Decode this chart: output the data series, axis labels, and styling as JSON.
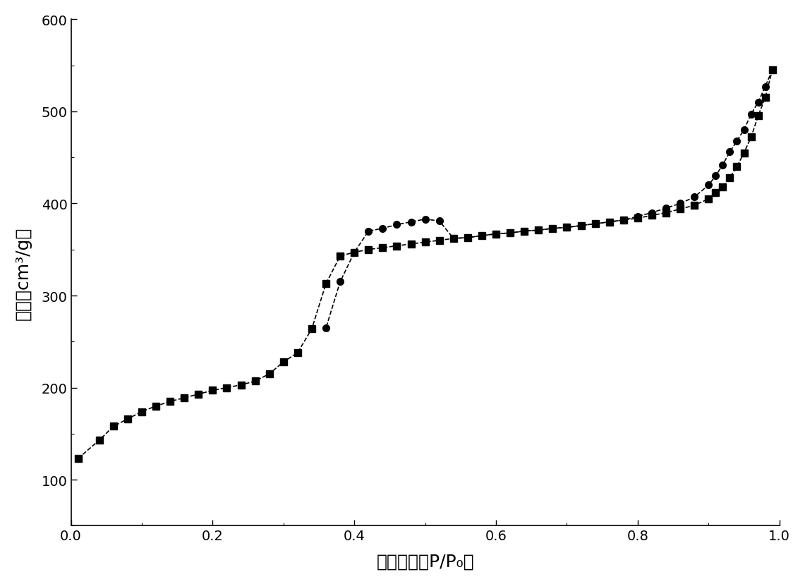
{
  "adsorption_x": [
    0.01,
    0.04,
    0.06,
    0.08,
    0.1,
    0.12,
    0.14,
    0.16,
    0.18,
    0.2,
    0.22,
    0.24,
    0.26,
    0.28,
    0.3,
    0.32,
    0.34,
    0.36,
    0.38,
    0.4,
    0.42,
    0.44,
    0.46,
    0.48,
    0.5,
    0.52,
    0.54,
    0.56,
    0.58,
    0.6,
    0.62,
    0.64,
    0.66,
    0.68,
    0.7,
    0.72,
    0.74,
    0.76,
    0.78,
    0.8,
    0.82,
    0.84,
    0.86,
    0.88,
    0.9,
    0.91,
    0.92,
    0.93,
    0.94,
    0.95,
    0.96,
    0.97,
    0.98,
    0.99
  ],
  "adsorption_y": [
    123,
    143,
    158,
    166,
    174,
    180,
    185,
    189,
    193,
    197,
    200,
    203,
    207,
    215,
    228,
    238,
    264,
    313,
    343,
    347,
    350,
    352,
    354,
    356,
    358,
    360,
    362,
    363,
    365,
    367,
    368,
    370,
    371,
    373,
    374,
    376,
    378,
    380,
    382,
    384,
    387,
    390,
    394,
    398,
    405,
    412,
    418,
    428,
    440,
    455,
    472,
    495,
    515,
    545
  ],
  "desorption_x": [
    0.99,
    0.98,
    0.97,
    0.96,
    0.95,
    0.94,
    0.93,
    0.92,
    0.91,
    0.9,
    0.88,
    0.86,
    0.84,
    0.82,
    0.8,
    0.78,
    0.76,
    0.74,
    0.72,
    0.7,
    0.68,
    0.66,
    0.64,
    0.62,
    0.6,
    0.58,
    0.56,
    0.54,
    0.52,
    0.5,
    0.48,
    0.46,
    0.44,
    0.42,
    0.4,
    0.38,
    0.36
  ],
  "desorption_y": [
    545,
    527,
    510,
    497,
    480,
    468,
    456,
    442,
    430,
    420,
    407,
    400,
    395,
    390,
    386,
    382,
    380,
    378,
    376,
    374,
    373,
    371,
    370,
    368,
    367,
    365,
    363,
    362,
    381,
    383,
    380,
    377,
    373,
    370,
    347,
    315,
    265
  ],
  "xlabel": "相对压力（P/P₀）",
  "ylabel": "体积（cm³/g）",
  "xlim": [
    0.0,
    1.0
  ],
  "ylim": [
    50,
    600
  ],
  "yticks": [
    100,
    200,
    300,
    400,
    500,
    600
  ],
  "xticks": [
    0.0,
    0.2,
    0.4,
    0.6,
    0.8,
    1.0
  ],
  "line_color": "#000000",
  "markersize": 7,
  "linewidth": 1.2,
  "background_color": "#ffffff",
  "xlabel_fontsize": 18,
  "ylabel_fontsize": 18,
  "tick_fontsize": 14
}
